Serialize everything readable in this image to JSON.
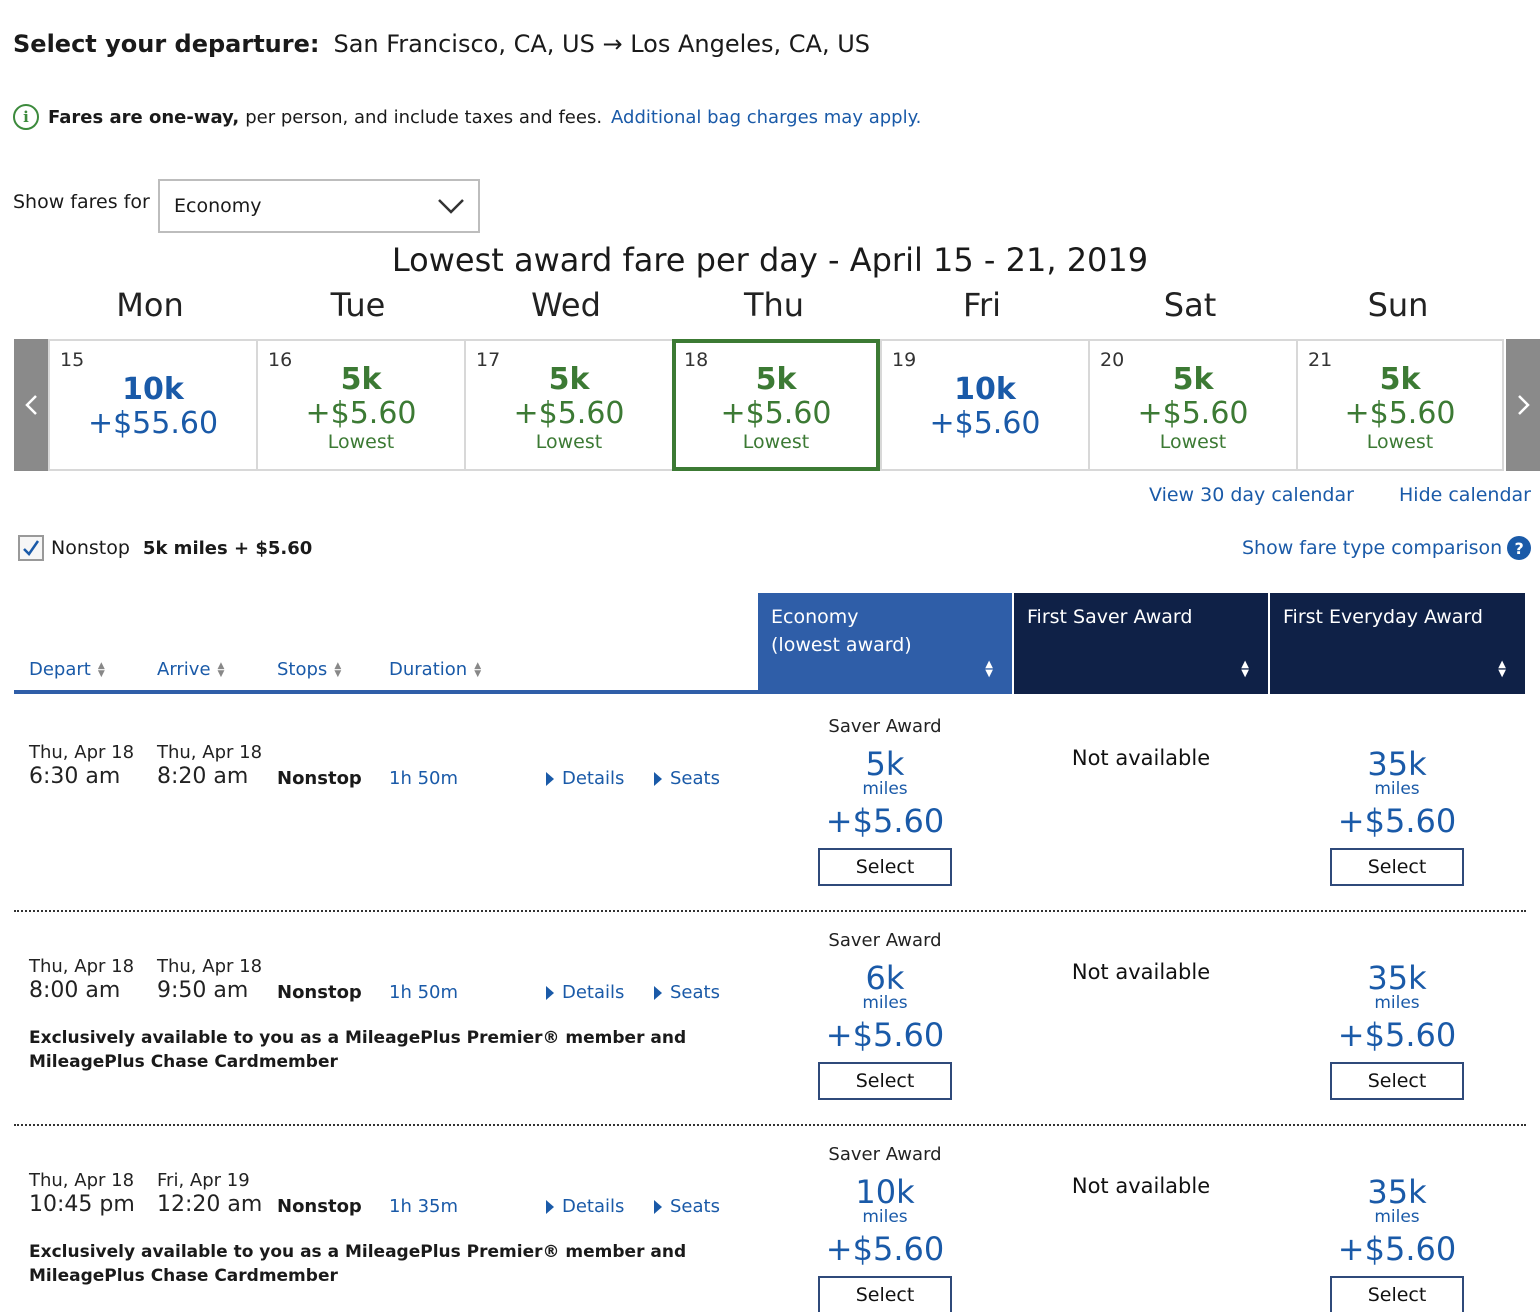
{
  "header": {
    "label": "Select your departure:",
    "route": "San Francisco, CA, US → Los Angeles, CA, US"
  },
  "notice": {
    "bold": "Fares are one-way,",
    "text": "per person, and include taxes and fees.",
    "link": "Additional bag charges may apply."
  },
  "fare_filter": {
    "label": "Show fares for",
    "selected": "Economy"
  },
  "calendar": {
    "title": "Lowest award fare per day - April 15 - 21, 2019",
    "days": [
      "Mon",
      "Tue",
      "Wed",
      "Thu",
      "Fri",
      "Sat",
      "Sun"
    ],
    "cells": [
      {
        "date": "15",
        "miles": "10k",
        "price": "+$55.60",
        "note": ""
      },
      {
        "date": "16",
        "miles": "5k",
        "price": "+$5.60",
        "note": "Lowest"
      },
      {
        "date": "17",
        "miles": "5k",
        "price": "+$5.60",
        "note": "Lowest"
      },
      {
        "date": "18",
        "miles": "5k",
        "price": "+$5.60",
        "note": "Lowest"
      },
      {
        "date": "19",
        "miles": "10k",
        "price": "+$5.60",
        "note": ""
      },
      {
        "date": "20",
        "miles": "5k",
        "price": "+$5.60",
        "note": "Lowest"
      },
      {
        "date": "21",
        "miles": "5k",
        "price": "+$5.60",
        "note": "Lowest"
      }
    ],
    "view30": "View 30 day calendar",
    "hide": "Hide calendar"
  },
  "nonstop": {
    "label": "Nonstop",
    "fare": "5k miles + $5.60",
    "compare": "Show fare type comparison"
  },
  "columns": {
    "depart": "Depart",
    "arrive": "Arrive",
    "stops": "Stops",
    "duration": "Duration",
    "economy_1": "Economy",
    "economy_2": "(lowest award)",
    "first_saver": "First Saver Award",
    "first_everyday": "First Everyday Award"
  },
  "flights": [
    {
      "dep_date": "Thu, Apr 18",
      "dep_time": "6:30 am",
      "arr_date": "Thu, Apr 18",
      "arr_time": "8:20 am",
      "stops": "Nonstop",
      "duration": "1h 50m",
      "details": "Details",
      "seats": "Seats",
      "exclusive": "",
      "economy": {
        "award": "Saver Award",
        "miles": "5k",
        "unit": "miles",
        "price": "+$5.60",
        "button": "Select"
      },
      "first_saver": "Not available",
      "first_everyday": {
        "miles": "35k",
        "unit": "miles",
        "price": "+$5.60",
        "button": "Select"
      }
    },
    {
      "dep_date": "Thu, Apr 18",
      "dep_time": "8:00 am",
      "arr_date": "Thu, Apr 18",
      "arr_time": "9:50 am",
      "stops": "Nonstop",
      "duration": "1h 50m",
      "details": "Details",
      "seats": "Seats",
      "exclusive": "Exclusively available to you as a MileagePlus Premier® member and MileagePlus Chase Cardmember",
      "economy": {
        "award": "Saver Award",
        "miles": "6k",
        "unit": "miles",
        "price": "+$5.60",
        "button": "Select"
      },
      "first_saver": "Not available",
      "first_everyday": {
        "miles": "35k",
        "unit": "miles",
        "price": "+$5.60",
        "button": "Select"
      }
    },
    {
      "dep_date": "Thu, Apr 18",
      "dep_time": "10:45 pm",
      "arr_date": "Fri, Apr 19",
      "arr_time": "12:20 am",
      "stops": "Nonstop",
      "duration": "1h 35m",
      "details": "Details",
      "seats": "Seats",
      "exclusive": "Exclusively available to you as a MileagePlus Premier® member and MileagePlus Chase Cardmember",
      "economy": {
        "award": "Saver Award",
        "miles": "10k",
        "unit": "miles",
        "price": "+$5.60",
        "button": "Select"
      },
      "first_saver": "Not available",
      "first_everyday": {
        "miles": "35k",
        "unit": "miles",
        "price": "+$5.60",
        "button": "Select"
      }
    }
  ],
  "colors": {
    "link_blue": "#1a5aa8",
    "lowest_green": "#3c7a34",
    "header_blue": "#2f5ea8",
    "header_navy": "#0f2147"
  }
}
